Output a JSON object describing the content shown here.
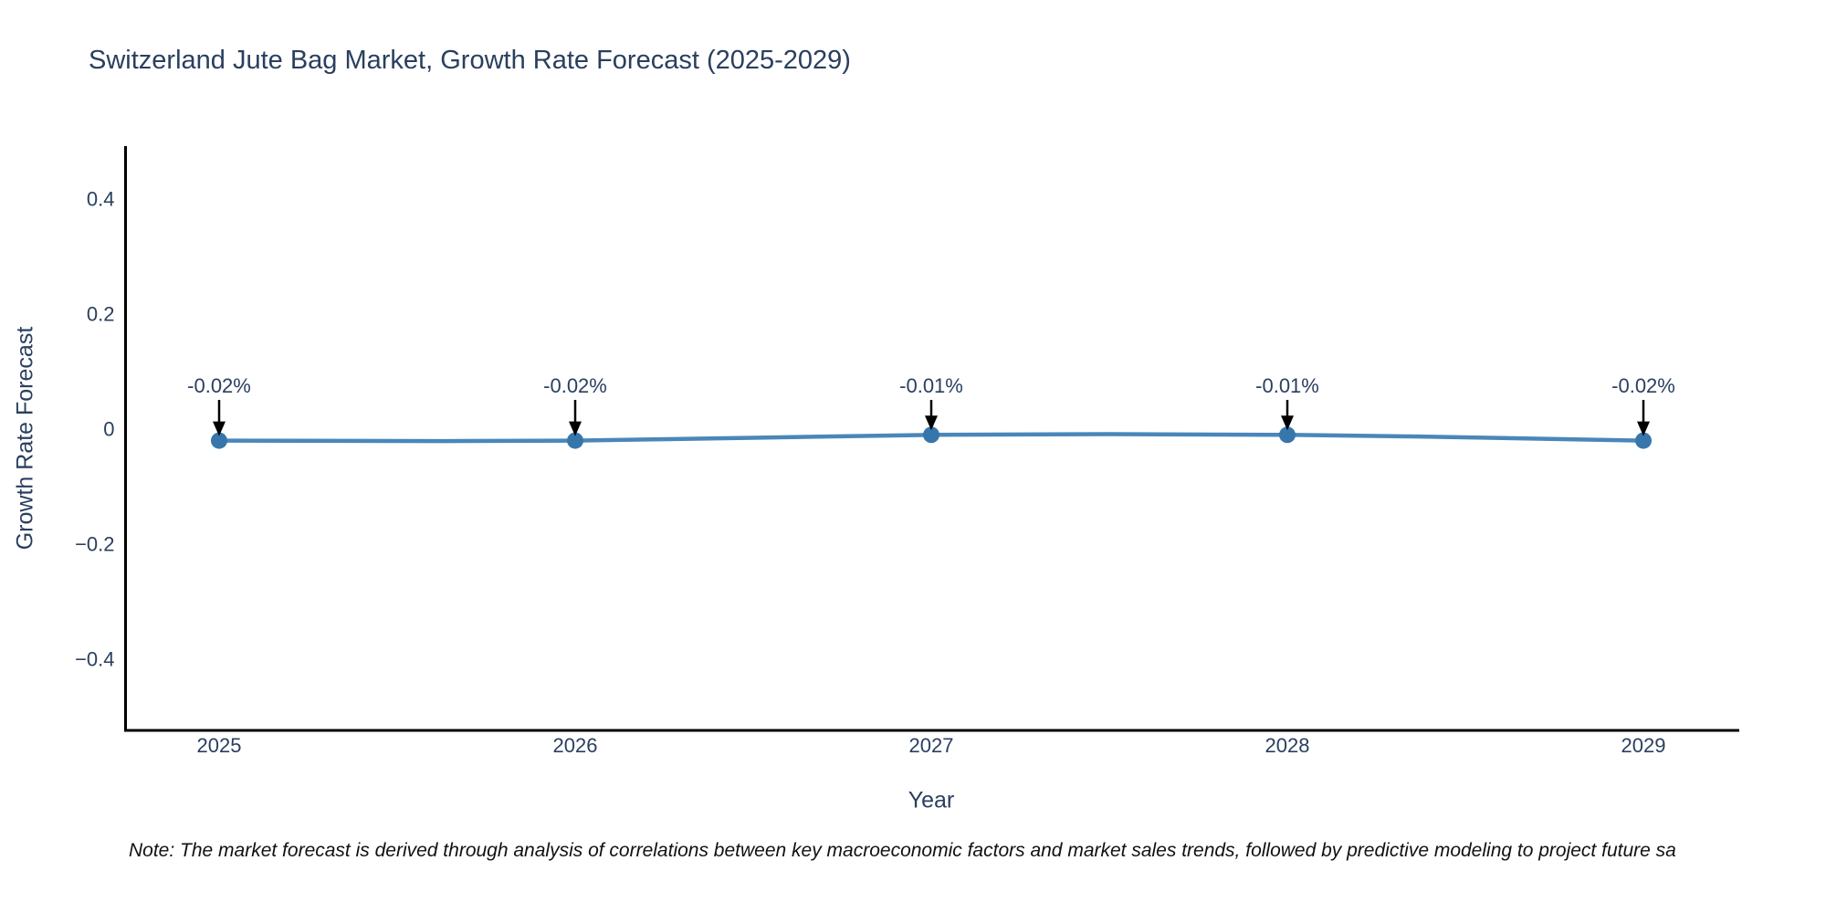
{
  "title": "Switzerland Jute Bag Market, Growth Rate Forecast (2025-2029)",
  "note": "Note: The market forecast is derived through analysis of correlations between key macroeconomic factors and market sales trends, followed by predictive modeling to project future sa",
  "chart_data": {
    "type": "line",
    "title": "Switzerland Jute Bag Market, Growth Rate Forecast (2025-2029)",
    "xlabel": "Year",
    "ylabel": "Growth Rate Forecast",
    "x": [
      "2025",
      "2026",
      "2027",
      "2028",
      "2029"
    ],
    "series": [
      {
        "name": "Growth Rate Forecast",
        "values": [
          -0.02,
          -0.02,
          -0.01,
          -0.01,
          -0.02
        ]
      }
    ],
    "point_labels": [
      "-0.02%",
      "-0.02%",
      "-0.01%",
      "-0.01%",
      "-0.02%"
    ],
    "yticks": [
      0.4,
      0.2,
      0,
      -0.2,
      -0.4
    ],
    "ytick_labels": [
      "0.4",
      "0.2",
      "0",
      "−0.2",
      "−0.4"
    ],
    "ylim": [
      -0.52,
      0.52
    ],
    "grid": false,
    "legend": "none"
  },
  "colors": {
    "title_text": "#2a3f5f",
    "axis_text": "#2a3f5f",
    "axis_line": "#000000",
    "line": "#4a87b9",
    "marker": "#3776ab",
    "annotation_text": "#2a3f5f",
    "annotation_arrow": "#000000",
    "background": "#ffffff"
  }
}
